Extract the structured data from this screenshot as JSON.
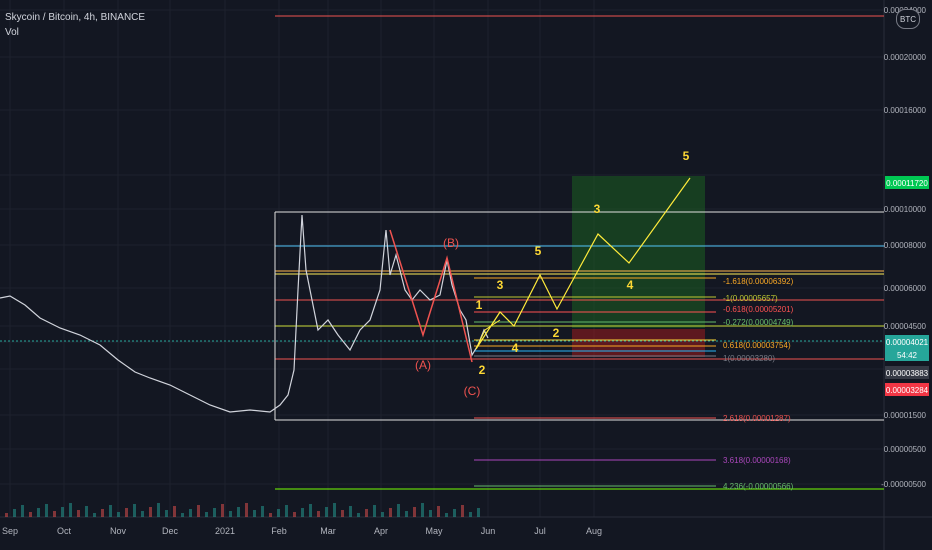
{
  "header": {
    "title": "Skycoin / Bitcoin, 4h, BINANCE",
    "vol_label": "Vol",
    "currency_badge": "BTC"
  },
  "chart_data": {
    "type": "line",
    "title": "Skycoin / Bitcoin, 4h, BINANCE",
    "x_ticks": [
      "Sep",
      "Oct",
      "Nov",
      "Dec",
      "2021",
      "Feb",
      "Mar",
      "Apr",
      "May",
      "Jun",
      "Jul",
      "Aug"
    ],
    "y_ticks": [
      "0.00024000",
      "0.00020000",
      "0.00016000",
      "0.00010000",
      "0.00008000",
      "0.00006000",
      "0.00004500",
      "0.00001500",
      "0.00000500",
      "-0.00000500"
    ],
    "price_tags": [
      {
        "text": "0.00011720",
        "color": "#00c853"
      },
      {
        "text": "0.00004021",
        "color": "#26a69a"
      },
      {
        "text": "54:42",
        "color": "#26a69a"
      },
      {
        "text": "0.00003883",
        "color": "#363a45"
      },
      {
        "text": "0.00003284",
        "color": "#f23645"
      }
    ],
    "fib_labels": [
      {
        "text": "-1.618(0.00006392)",
        "color": "#f9a825"
      },
      {
        "text": "-1(0.00005657)",
        "color": "#c0ca33"
      },
      {
        "text": "-0.618(0.00005201)",
        "color": "#ff5252"
      },
      {
        "text": "-0.272(0.00004749)",
        "color": "#66bb6a"
      },
      {
        "text": "0.618(0.00003754)",
        "color": "#f9a825"
      },
      {
        "text": "1(0.00003280)",
        "color": "#787b86"
      },
      {
        "text": "2.618(0.00001287)",
        "color": "#ef5350"
      },
      {
        "text": "3.618(0.00000168)",
        "color": "#ab47bc"
      },
      {
        "text": "4.236(-0.00000566)",
        "color": "#66bb6a"
      }
    ],
    "wave_labels_red": [
      "(A)",
      "(B)",
      "(C)"
    ],
    "wave_labels_yellow": [
      "1",
      "2",
      "3",
      "4",
      "5"
    ],
    "price_series": [
      {
        "t": "Sep",
        "v": 1.52e-05
      },
      {
        "t": "Oct",
        "v": 1.35e-05
      },
      {
        "t": "Nov",
        "v": 1.18e-05
      },
      {
        "t": "Dec",
        "v": 8e-06
      },
      {
        "t": "2021",
        "v": 4e-06
      },
      {
        "t": "Feb",
        "v": 6e-06
      },
      {
        "t": "Feb-mid",
        "v": 0.000115
      },
      {
        "t": "Mar",
        "v": 4.5e-05
      },
      {
        "t": "Apr",
        "v": 9.5e-05
      },
      {
        "t": "May",
        "v": 7e-05
      },
      {
        "t": "Jun",
        "v": 3.3e-05
      }
    ]
  }
}
